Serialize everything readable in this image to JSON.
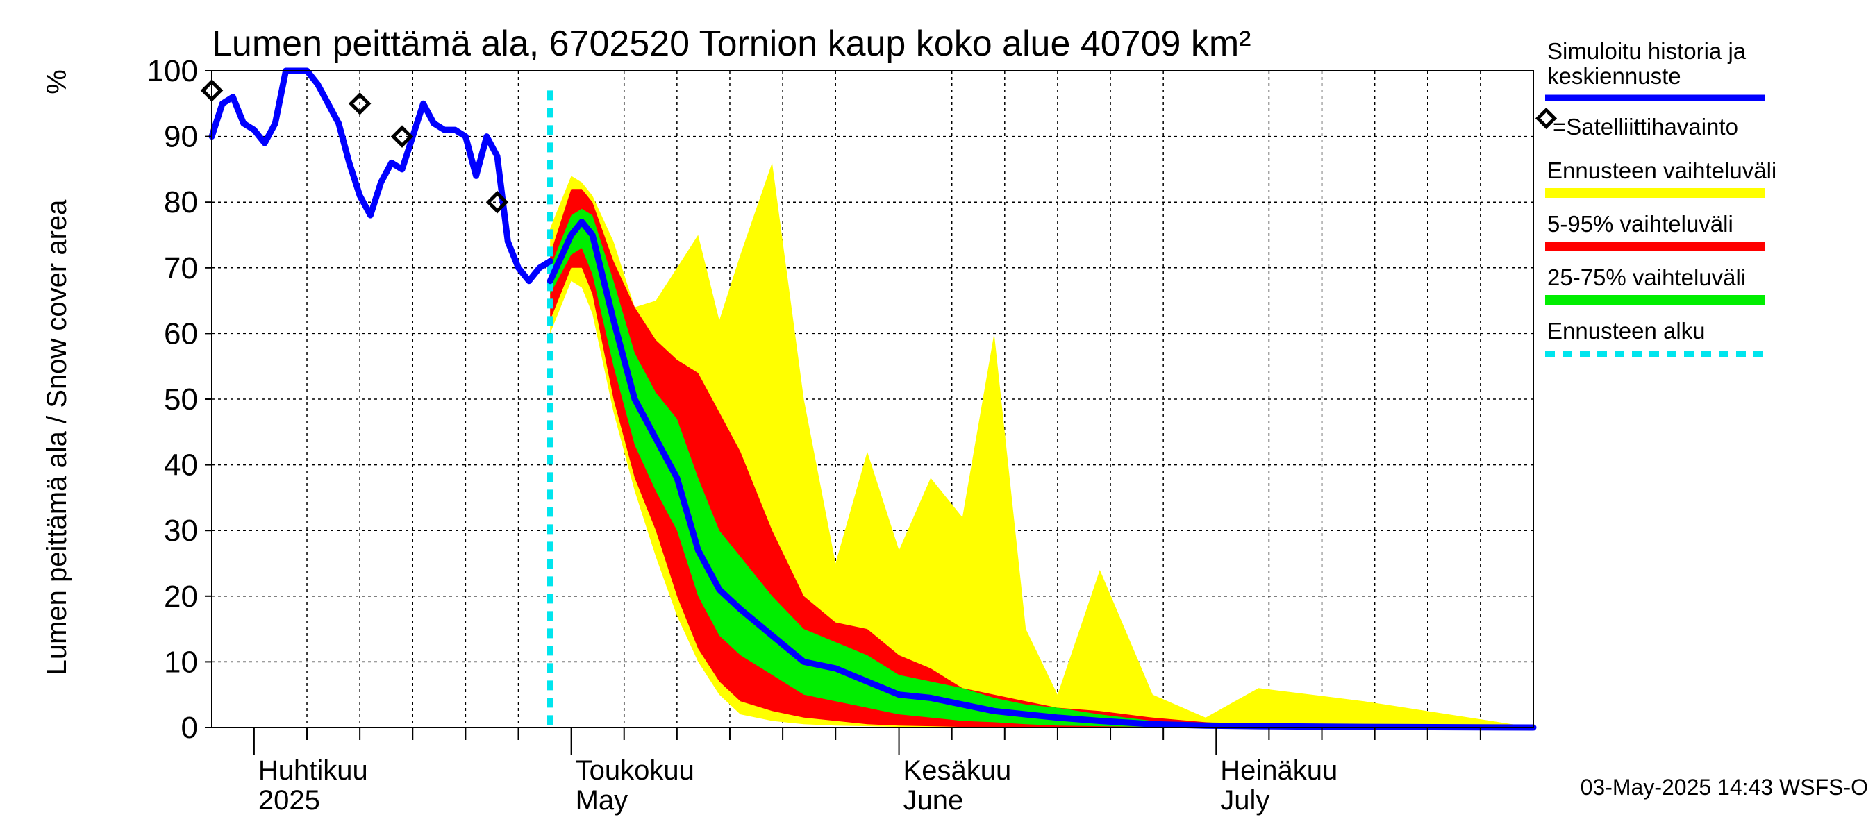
{
  "chart_data": {
    "type": "area",
    "title": "Lumen peittämä ala, 6702520 Tornion kaup koko alue 40709 km²",
    "ylabel": "Lumen peittämä ala / Snow cover area",
    "yunit": "%",
    "ylim": [
      0,
      100
    ],
    "yticks": [
      0,
      10,
      20,
      30,
      40,
      50,
      60,
      70,
      80,
      90,
      100
    ],
    "xlim": [
      "2025-03-28",
      "2025-07-31"
    ],
    "grid": true,
    "month_labels": [
      {
        "date": "2025-04-01",
        "fi": "Huhtikuu",
        "en": "2025"
      },
      {
        "date": "2025-05-01",
        "fi": "Toukokuu",
        "en": "May"
      },
      {
        "date": "2025-06-01",
        "fi": "Kesäkuu",
        "en": "June"
      },
      {
        "date": "2025-07-01",
        "fi": "Heinäkuu",
        "en": "July"
      }
    ],
    "forecast_start": "2025-04-29",
    "timestamp": "03-May-2025 14:43 WSFS-O",
    "legend": {
      "placement": "right",
      "items": [
        {
          "label": "Simuloitu historia ja keskiennuste",
          "color": "#0000ff",
          "style": "line"
        },
        {
          "label": "=Satelliittihavainto",
          "color": "#000000",
          "style": "diamond"
        },
        {
          "label": "Ennusteen vaihteluväli",
          "color": "#ffff00",
          "style": "band"
        },
        {
          "label": "5-95% vaihteluväli",
          "color": "#ff0000",
          "style": "band"
        },
        {
          "label": "25-75% vaihteluväli",
          "color": "#00ee00",
          "style": "band"
        },
        {
          "label": "Ennusteen alku",
          "color": "#00e5ee",
          "style": "dashed"
        }
      ]
    },
    "history": {
      "name": "Simuloitu historia ja keskiennuste",
      "x": [
        "2025-03-28",
        "2025-03-29",
        "2025-03-30",
        "2025-03-31",
        "2025-04-01",
        "2025-04-02",
        "2025-04-03",
        "2025-04-04",
        "2025-04-05",
        "2025-04-06",
        "2025-04-07",
        "2025-04-08",
        "2025-04-09",
        "2025-04-10",
        "2025-04-11",
        "2025-04-12",
        "2025-04-13",
        "2025-04-14",
        "2025-04-15",
        "2025-04-16",
        "2025-04-17",
        "2025-04-18",
        "2025-04-19",
        "2025-04-20",
        "2025-04-21",
        "2025-04-22",
        "2025-04-23",
        "2025-04-24",
        "2025-04-25",
        "2025-04-26",
        "2025-04-27",
        "2025-04-28",
        "2025-04-29"
      ],
      "y": [
        90,
        95,
        96,
        92,
        91,
        89,
        92,
        100,
        100,
        100,
        98,
        95,
        92,
        86,
        81,
        78,
        83,
        86,
        85,
        90,
        95,
        92,
        91,
        91,
        90,
        84,
        90,
        87,
        74,
        70,
        68,
        70,
        71
      ]
    },
    "forecast": {
      "x": [
        "2025-04-29",
        "2025-05-01",
        "2025-05-02",
        "2025-05-03",
        "2025-05-05",
        "2025-05-07",
        "2025-05-09",
        "2025-05-11",
        "2025-05-13",
        "2025-05-15",
        "2025-05-17",
        "2025-05-20",
        "2025-05-23",
        "2025-05-26",
        "2025-05-29",
        "2025-06-01",
        "2025-06-04",
        "2025-06-07",
        "2025-06-10",
        "2025-06-13",
        "2025-06-16",
        "2025-06-20",
        "2025-06-25",
        "2025-06-30",
        "2025-07-05",
        "2025-07-15",
        "2025-07-31"
      ],
      "median": [
        68,
        75,
        77,
        75,
        62,
        50,
        44,
        38,
        27,
        21,
        18,
        14,
        10,
        9,
        7,
        5,
        4.5,
        3.5,
        2.5,
        2,
        1.5,
        1,
        0.5,
        0.3,
        0.2,
        0.1,
        0
      ],
      "p25": [
        66,
        72,
        73,
        69,
        55,
        43,
        36,
        30,
        20,
        14,
        11,
        8,
        5,
        4,
        3,
        2,
        1.5,
        1,
        0.8,
        0.5,
        0.3,
        0.2,
        0.1,
        0,
        0,
        0,
        0
      ],
      "p75": [
        70,
        78,
        79,
        78,
        68,
        57,
        51,
        47,
        38,
        30,
        26,
        20,
        15,
        13,
        11,
        8,
        7,
        6,
        4.5,
        3.5,
        3,
        2,
        1,
        0.5,
        0.3,
        0.1,
        0
      ],
      "p5": [
        62,
        70,
        70,
        66,
        50,
        38,
        30,
        20,
        12,
        7,
        4,
        2.5,
        1.5,
        1,
        0.5,
        0.3,
        0.2,
        0.1,
        0,
        0,
        0,
        0,
        0,
        0,
        0,
        0,
        0
      ],
      "p95": [
        72,
        82,
        82,
        80,
        71,
        64,
        59,
        56,
        54,
        48,
        42,
        30,
        20,
        16,
        15,
        11,
        9,
        6,
        5,
        4,
        3,
        2.5,
        1.5,
        0.8,
        0.3,
        0.1,
        0
      ],
      "min": [
        60,
        68,
        67,
        63,
        48,
        36,
        26,
        17,
        10,
        5,
        2,
        1,
        0.5,
        0.3,
        0.2,
        0.1,
        0,
        0,
        0,
        0,
        0,
        0,
        0,
        0,
        0,
        0,
        0
      ],
      "max": [
        76,
        84,
        83,
        81,
        74,
        64,
        65,
        70,
        75,
        62,
        72,
        86,
        50,
        25,
        42,
        27,
        38,
        32,
        60,
        15,
        5,
        24,
        5,
        1.5,
        6,
        4,
        0
      ]
    },
    "satellite": {
      "name": "=Satelliittihavainto",
      "x": [
        "2025-03-28",
        "2025-04-11",
        "2025-04-15",
        "2025-04-24"
      ],
      "y": [
        97,
        95,
        90,
        80
      ]
    }
  }
}
